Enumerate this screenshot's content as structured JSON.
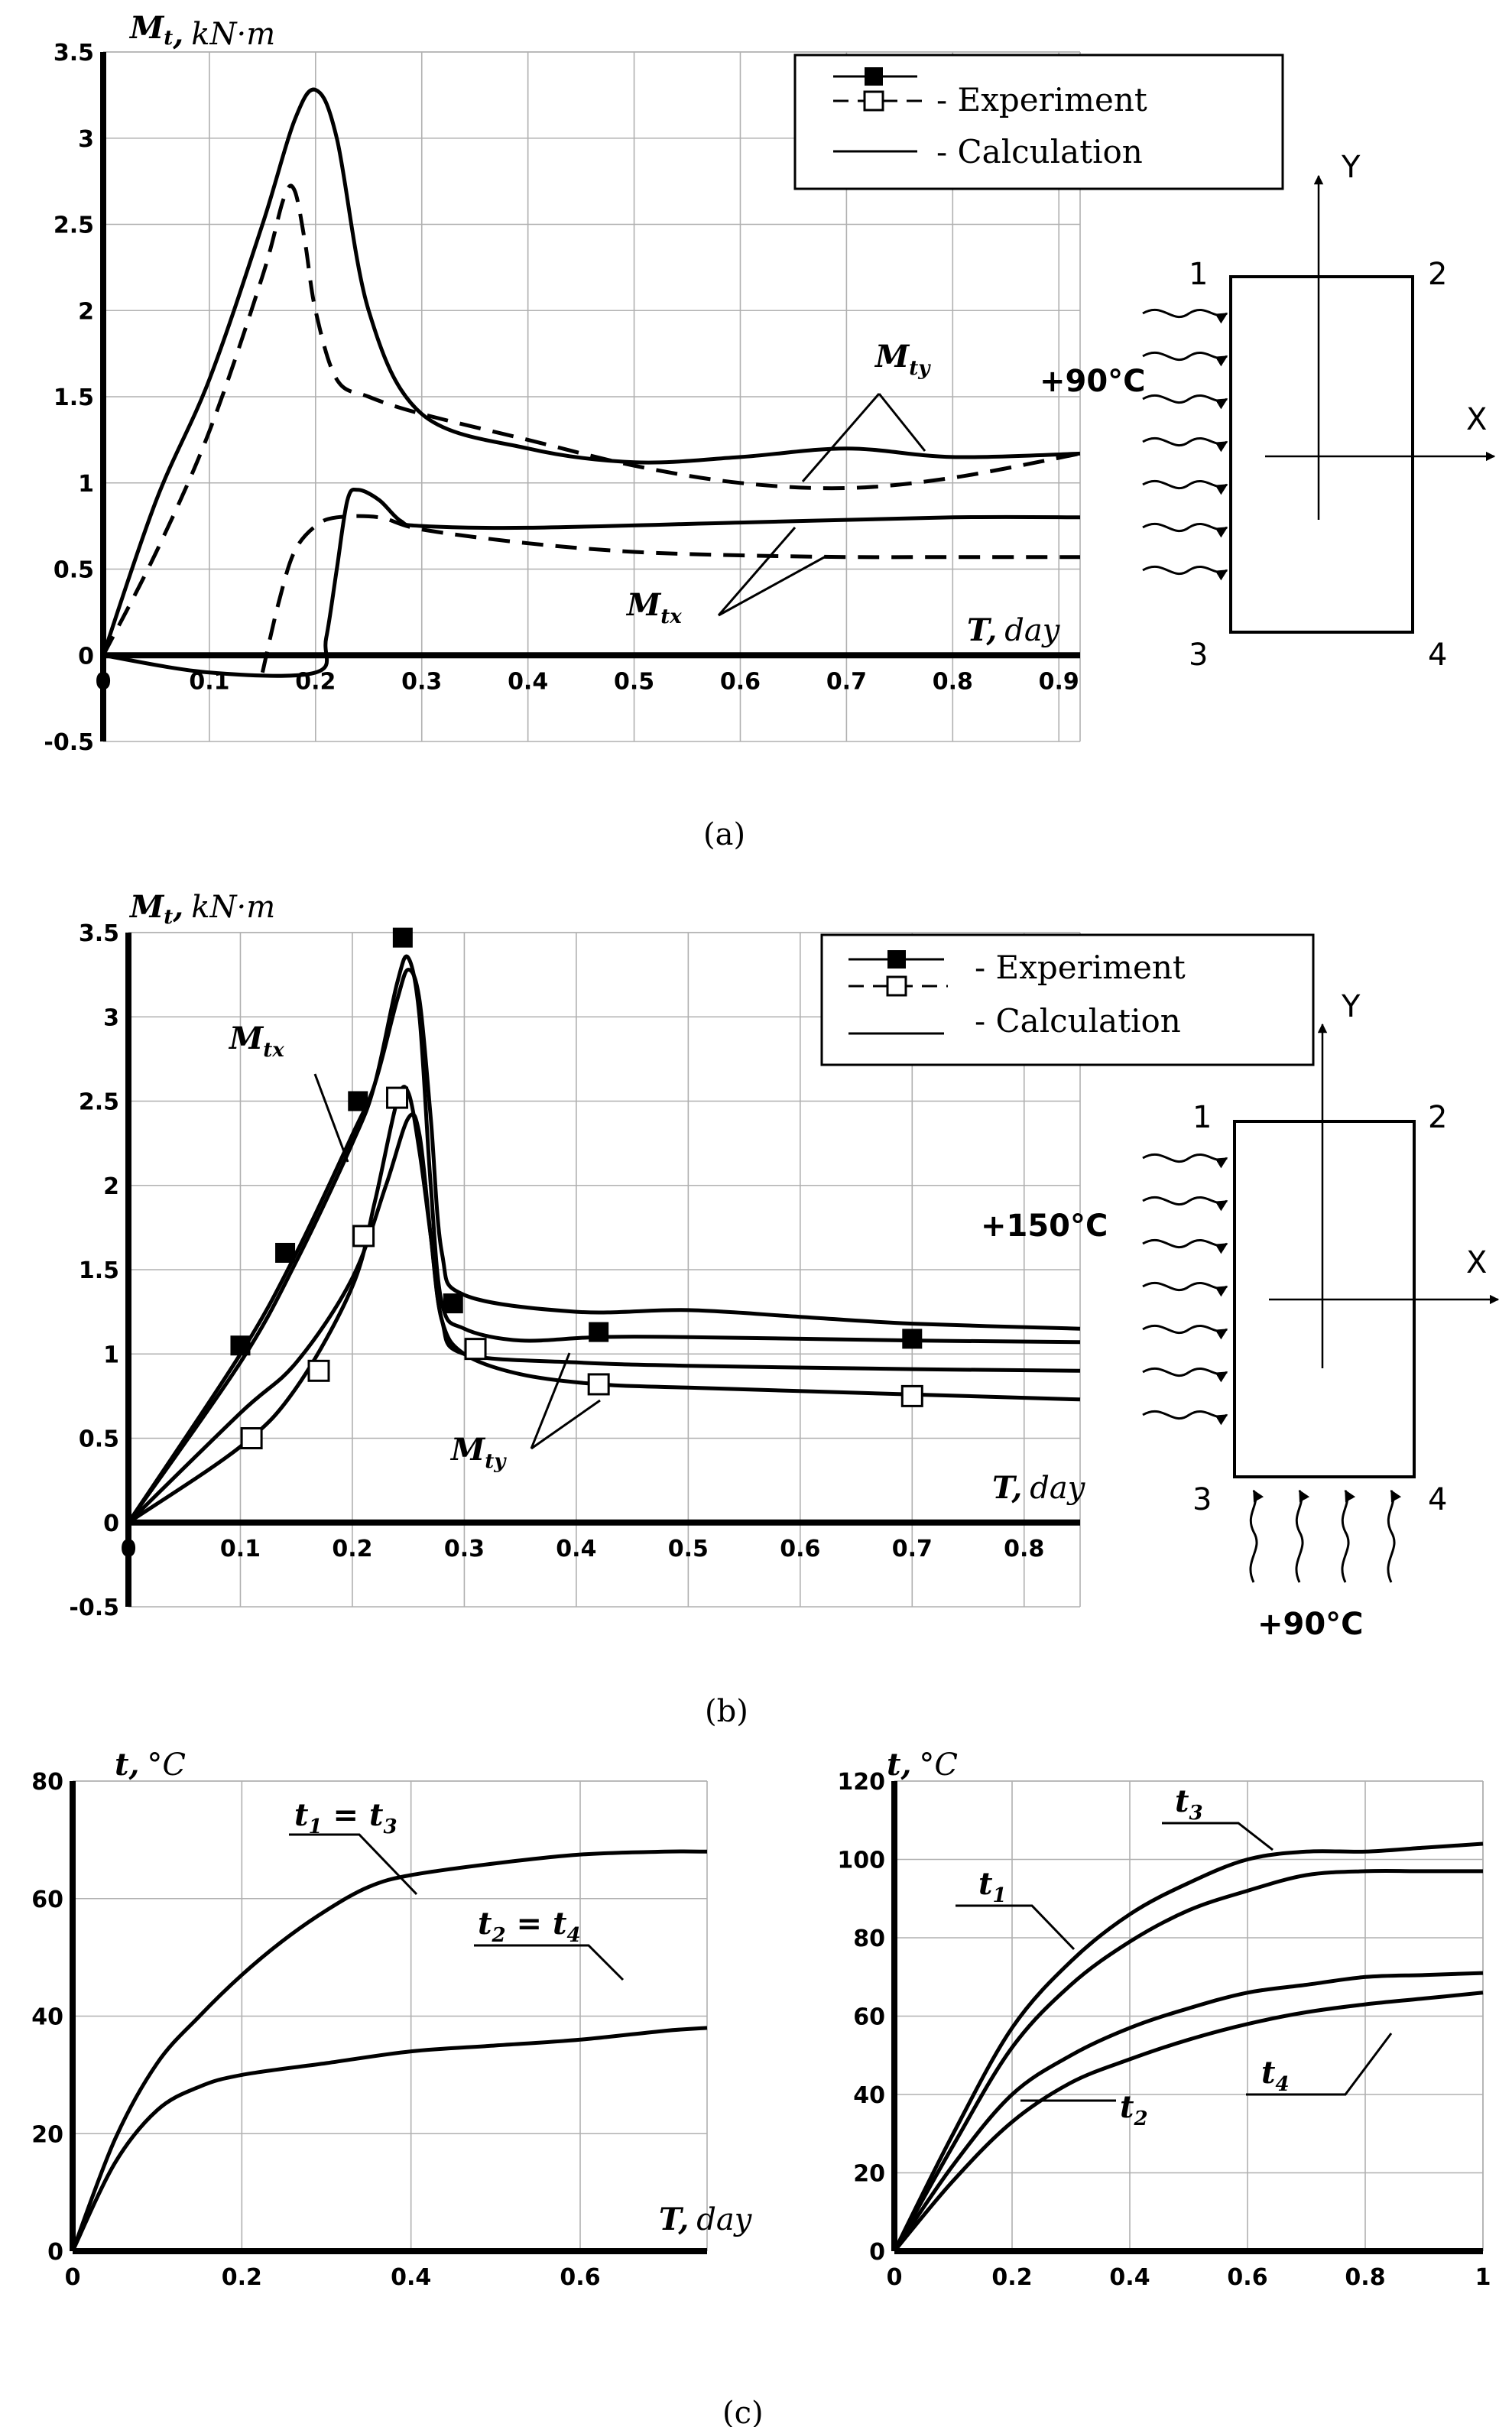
{
  "captions": [
    "(a)",
    "(b)",
    "(c)"
  ],
  "chart_data": [
    {
      "id": "a",
      "type": "line",
      "ylabel_main": "Mt,",
      "ylabel_unit": "kN·m",
      "xlabel_main": "T,",
      "xlabel_unit": "day",
      "xlim": [
        0,
        0.92
      ],
      "ylim": [
        -0.5,
        3.5
      ],
      "xticks": [
        0,
        0.1,
        0.2,
        0.3,
        0.4,
        0.5,
        0.6,
        0.7,
        0.8,
        0.9
      ],
      "xtick_labels": [
        "0",
        "0.1",
        "0.2",
        "0.3",
        "0.4",
        "0.5",
        "0.6",
        "0.7",
        "0.8",
        "0.9"
      ],
      "yticks": [
        -0.5,
        0,
        0.5,
        1,
        1.5,
        2,
        2.5,
        3,
        3.5
      ],
      "ytick_labels": [
        "-0.5",
        "0",
        "0.5",
        "1",
        "1.5",
        "2",
        "2.5",
        "3",
        "3.5"
      ],
      "legend": {
        "experiment": "- Experiment",
        "calculation": "- Calculation"
      },
      "series": [
        {
          "name": "Mty calculation",
          "style": "solid",
          "x": [
            0,
            0.05,
            0.1,
            0.15,
            0.18,
            0.2,
            0.22,
            0.25,
            0.3,
            0.4,
            0.5,
            0.6,
            0.7,
            0.8,
            0.92
          ],
          "y": [
            0,
            0.9,
            1.6,
            2.5,
            3.1,
            3.28,
            3.0,
            2.0,
            1.4,
            1.2,
            1.12,
            1.15,
            1.2,
            1.15,
            1.17
          ]
        },
        {
          "name": "Mty experiment",
          "style": "dashed",
          "x": [
            0,
            0.05,
            0.1,
            0.15,
            0.17,
            0.18,
            0.19,
            0.2,
            0.22,
            0.25,
            0.3,
            0.4,
            0.5,
            0.6,
            0.7,
            0.8,
            0.92
          ],
          "y": [
            0,
            0.6,
            1.3,
            2.2,
            2.65,
            2.7,
            2.4,
            2.0,
            1.6,
            1.5,
            1.4,
            1.25,
            1.1,
            1.0,
            0.97,
            1.03,
            1.17
          ]
        },
        {
          "name": "Mtx calculation",
          "style": "solid",
          "x": [
            0,
            0.1,
            0.2,
            0.21,
            0.22,
            0.23,
            0.24,
            0.26,
            0.28,
            0.3,
            0.4,
            0.6,
            0.8,
            0.92
          ],
          "y": [
            0,
            -0.1,
            -0.1,
            0.1,
            0.5,
            0.9,
            0.96,
            0.9,
            0.78,
            0.75,
            0.74,
            0.77,
            0.8,
            0.8
          ]
        },
        {
          "name": "Mtx experiment",
          "style": "dashed",
          "x": [
            0.15,
            0.165,
            0.18,
            0.2,
            0.22,
            0.26,
            0.3,
            0.4,
            0.5,
            0.6,
            0.7,
            0.8,
            0.92
          ],
          "y": [
            -0.1,
            0.3,
            0.6,
            0.75,
            0.8,
            0.8,
            0.73,
            0.65,
            0.6,
            0.58,
            0.57,
            0.57,
            0.57
          ]
        }
      ],
      "annotations": [
        {
          "label": "Mty",
          "base": "M",
          "subscript": "ty"
        },
        {
          "label": "Mtx",
          "base": "M",
          "subscript": "tx"
        }
      ],
      "inset": {
        "temperature": "+90°C",
        "corners": [
          "1",
          "2",
          "3",
          "4"
        ],
        "axis_x": "X",
        "axis_y": "Y"
      }
    },
    {
      "id": "b",
      "type": "line",
      "ylabel_main": "Mt,",
      "ylabel_unit": "kN·m",
      "xlabel_main": "T,",
      "xlabel_unit": "day",
      "xlim": [
        0,
        0.85
      ],
      "ylim": [
        -0.5,
        3.5
      ],
      "xticks": [
        0,
        0.1,
        0.2,
        0.3,
        0.4,
        0.5,
        0.6,
        0.7,
        0.8
      ],
      "xtick_labels": [
        "0",
        "0.1",
        "0.2",
        "0.3",
        "0.4",
        "0.5",
        "0.6",
        "0.7",
        "0.8"
      ],
      "yticks": [
        -0.5,
        0,
        0.5,
        1,
        1.5,
        2,
        2.5,
        3,
        3.5
      ],
      "ytick_labels": [
        "-0.5",
        "0",
        "0.5",
        "1",
        "1.5",
        "2",
        "2.5",
        "3",
        "3.5"
      ],
      "legend": {
        "experiment": "- Experiment",
        "calculation": "- Calculation"
      },
      "series": [
        {
          "name": "Mtx calculation A",
          "style": "solid",
          "x": [
            0,
            0.1,
            0.15,
            0.2,
            0.22,
            0.24,
            0.25,
            0.26,
            0.27,
            0.28,
            0.3,
            0.4,
            0.5,
            0.6,
            0.7,
            0.85
          ],
          "y": [
            0,
            1.0,
            1.6,
            2.3,
            2.6,
            3.1,
            3.28,
            3.1,
            2.4,
            1.6,
            1.35,
            1.25,
            1.26,
            1.22,
            1.18,
            1.15
          ]
        },
        {
          "name": "Mtx calculation B",
          "style": "solid",
          "x": [
            0,
            0.1,
            0.15,
            0.2,
            0.22,
            0.24,
            0.25,
            0.26,
            0.27,
            0.28,
            0.3,
            0.35,
            0.42,
            0.5,
            0.7,
            0.85
          ],
          "y": [
            0,
            0.95,
            1.55,
            2.25,
            2.6,
            3.2,
            3.35,
            3.0,
            2.0,
            1.3,
            1.15,
            1.08,
            1.1,
            1.1,
            1.08,
            1.07
          ]
        },
        {
          "name": "Mty calculation A",
          "style": "solid",
          "x": [
            0,
            0.1,
            0.15,
            0.2,
            0.23,
            0.25,
            0.26,
            0.27,
            0.28,
            0.3,
            0.4,
            0.5,
            0.7,
            0.85
          ],
          "y": [
            0,
            0.65,
            0.95,
            1.45,
            2.0,
            2.4,
            2.3,
            1.7,
            1.2,
            1.0,
            0.95,
            0.93,
            0.91,
            0.9
          ]
        },
        {
          "name": "Mty calculation B",
          "style": "solid",
          "x": [
            0,
            0.1,
            0.15,
            0.2,
            0.22,
            0.24,
            0.25,
            0.26,
            0.27,
            0.28,
            0.3,
            0.35,
            0.42,
            0.5,
            0.7,
            0.85
          ],
          "y": [
            0,
            0.45,
            0.8,
            1.4,
            1.9,
            2.5,
            2.55,
            2.2,
            1.7,
            1.2,
            1.0,
            0.88,
            0.82,
            0.8,
            0.76,
            0.73
          ]
        }
      ],
      "markers_experiment_filled": {
        "x": [
          0.1,
          0.14,
          0.205,
          0.245,
          0.29,
          0.42,
          0.7
        ],
        "y": [
          1.05,
          1.6,
          2.5,
          3.47,
          1.3,
          1.13,
          1.09
        ]
      },
      "markers_experiment_open": {
        "x": [
          0.11,
          0.17,
          0.21,
          0.24,
          0.31,
          0.42,
          0.7
        ],
        "y": [
          0.5,
          0.9,
          1.7,
          2.52,
          1.03,
          0.82,
          0.75
        ]
      },
      "annotations": [
        {
          "label": "Mtx",
          "base": "M",
          "subscript": "tx"
        },
        {
          "label": "Mty",
          "base": "M",
          "subscript": "ty"
        }
      ],
      "inset": {
        "temperature_side": "+150°C",
        "temperature_bottom": "+90°C",
        "corners": [
          "1",
          "2",
          "3",
          "4"
        ],
        "axis_x": "X",
        "axis_y": "Y"
      }
    },
    {
      "id": "c-left",
      "type": "line",
      "ylabel_main": "t,",
      "ylabel_unit": "°C",
      "xlabel_main": "T,",
      "xlabel_unit": "day",
      "xlim": [
        0,
        0.75
      ],
      "ylim": [
        0,
        80
      ],
      "xticks": [
        0,
        0.2,
        0.4,
        0.6
      ],
      "xtick_labels": [
        "0",
        "0.2",
        "0.4",
        "0.6"
      ],
      "yticks": [
        0,
        20,
        40,
        60,
        80
      ],
      "ytick_labels": [
        "0",
        "20",
        "40",
        "60",
        "80"
      ],
      "series": [
        {
          "name": "t1 = t3",
          "x": [
            0,
            0.05,
            0.1,
            0.15,
            0.2,
            0.25,
            0.3,
            0.35,
            0.4,
            0.5,
            0.6,
            0.7,
            0.75
          ],
          "y": [
            0,
            19,
            32,
            40,
            47,
            53,
            58,
            62,
            64,
            66,
            67.5,
            68,
            68
          ]
        },
        {
          "name": "t2 = t4",
          "x": [
            0,
            0.05,
            0.1,
            0.15,
            0.2,
            0.3,
            0.4,
            0.5,
            0.6,
            0.7,
            0.75
          ],
          "y": [
            0,
            15,
            24,
            28,
            30,
            32,
            34,
            35,
            36,
            37.5,
            38
          ]
        }
      ],
      "annotations": [
        {
          "label": "t1 = t3",
          "a": "t",
          "a_sub": "1",
          "b": "t",
          "b_sub": "3"
        },
        {
          "label": "t2 = t4",
          "a": "t",
          "a_sub": "2",
          "b": "t",
          "b_sub": "4"
        }
      ]
    },
    {
      "id": "c-right",
      "type": "line",
      "ylabel_main": "t,",
      "ylabel_unit": "°C",
      "xlim": [
        0,
        1
      ],
      "ylim": [
        0,
        120
      ],
      "xticks": [
        0,
        0.2,
        0.4,
        0.6,
        0.8,
        1
      ],
      "xtick_labels": [
        "0",
        "0.2",
        "0.4",
        "0.6",
        "0.8",
        "1"
      ],
      "yticks": [
        0,
        20,
        40,
        60,
        80,
        100,
        120
      ],
      "ytick_labels": [
        "0",
        "20",
        "40",
        "60",
        "80",
        "100",
        "120"
      ],
      "series": [
        {
          "name": "t3",
          "x": [
            0,
            0.1,
            0.2,
            0.3,
            0.4,
            0.5,
            0.6,
            0.7,
            0.8,
            0.9,
            1
          ],
          "y": [
            0,
            30,
            57,
            74,
            86,
            94,
            100,
            102,
            102,
            103,
            104
          ]
        },
        {
          "name": "t1",
          "x": [
            0,
            0.1,
            0.2,
            0.3,
            0.4,
            0.5,
            0.6,
            0.7,
            0.8,
            0.9,
            1
          ],
          "y": [
            0,
            27,
            52,
            68,
            79,
            87,
            92,
            96,
            97,
            97,
            97
          ]
        },
        {
          "name": "t4",
          "x": [
            0,
            0.1,
            0.2,
            0.3,
            0.4,
            0.5,
            0.6,
            0.7,
            0.8,
            0.9,
            1
          ],
          "y": [
            0,
            22,
            40,
            50,
            57,
            62,
            66,
            68,
            70,
            70.5,
            71
          ]
        },
        {
          "name": "t2",
          "x": [
            0,
            0.1,
            0.2,
            0.3,
            0.4,
            0.5,
            0.6,
            0.7,
            0.8,
            0.9,
            1
          ],
          "y": [
            0,
            18,
            33,
            43,
            49,
            54,
            58,
            61,
            63,
            64.5,
            66
          ]
        }
      ],
      "annotations": [
        {
          "label": "t3",
          "base": "t",
          "subscript": "3"
        },
        {
          "label": "t1",
          "base": "t",
          "subscript": "1"
        },
        {
          "label": "t4",
          "base": "t",
          "subscript": "4"
        },
        {
          "label": "t2",
          "base": "t",
          "subscript": "2"
        }
      ]
    }
  ]
}
